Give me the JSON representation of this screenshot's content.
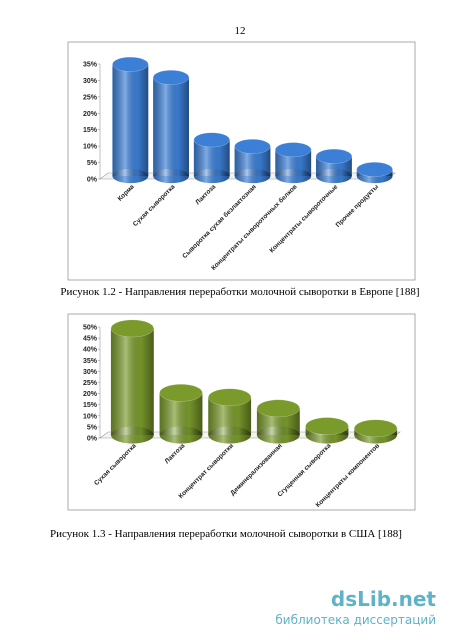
{
  "page_number": "12",
  "chart_data": [
    {
      "type": "bar",
      "color": "#3b7fd6",
      "categories": [
        "Корма",
        "Сухая сыворотка",
        "Лактоза",
        "Сыворотка сухая безлактозная",
        "Концентраты сывороточных белков",
        "Концентраты сывороточные",
        "Прочие продукты"
      ],
      "values": [
        34,
        30,
        11,
        9,
        8,
        6,
        2
      ],
      "ylim": [
        0,
        35
      ],
      "yticks": [
        {
          "value": 0,
          "label": "0%"
        },
        {
          "value": 5,
          "label": "5%"
        },
        {
          "value": 10,
          "label": "10%"
        },
        {
          "value": 15,
          "label": "15%"
        },
        {
          "value": 20,
          "label": "20%"
        },
        {
          "value": 25,
          "label": "25%"
        },
        {
          "value": 30,
          "label": "30%"
        },
        {
          "value": 35,
          "label": "35%"
        }
      ],
      "caption": "Рисунок 1.2 - Направления переработки молочной сыворотки в Европе [188]"
    },
    {
      "type": "bar",
      "color": "#7a9a2c",
      "categories": [
        "Сухая сыворотка",
        "Лактоза",
        "Концентрат сыворотки",
        "Деминерализованная",
        "Сгущенная сыворотка",
        "Концентраты компонентов"
      ],
      "values": [
        48,
        19,
        17,
        12,
        4,
        3
      ],
      "ylim": [
        0,
        50
      ],
      "yticks": [
        {
          "value": 0,
          "label": "0%"
        },
        {
          "value": 5,
          "label": "5%"
        },
        {
          "value": 10,
          "label": "10%"
        },
        {
          "value": 15,
          "label": "15%"
        },
        {
          "value": 20,
          "label": "20%"
        },
        {
          "value": 25,
          "label": "25%"
        },
        {
          "value": 30,
          "label": "30%"
        },
        {
          "value": 35,
          "label": "35%"
        },
        {
          "value": 40,
          "label": "40%"
        },
        {
          "value": 45,
          "label": "45%"
        },
        {
          "value": 50,
          "label": "50%"
        }
      ],
      "caption": "Рисунок 1.3 -  Направления переработки молочной сыворотки в США [188]"
    }
  ],
  "watermark": {
    "site": "dsLib.net",
    "subtitle": "библиотека диссертаций"
  }
}
